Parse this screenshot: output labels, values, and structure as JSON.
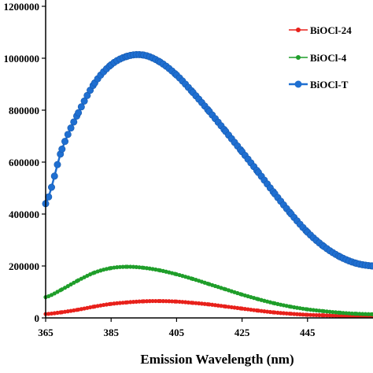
{
  "chart_data": {
    "type": "line",
    "title": "",
    "xlabel": "Emission Wavelength (nm)",
    "ylabel": "",
    "xlim": [
      365,
      465
    ],
    "ylim": [
      0,
      1200000
    ],
    "x_ticks": [
      365,
      385,
      405,
      425,
      445
    ],
    "x_tick_labels": [
      "365",
      "385",
      "405",
      "425",
      "445"
    ],
    "y_ticks": [
      0,
      200000,
      400000,
      600000,
      800000,
      1000000,
      1200000
    ],
    "y_tick_labels": [
      "0",
      "200000",
      "400000",
      "600000",
      "800000",
      "1000000",
      "1200000"
    ],
    "grid": false,
    "legend_position": "top-right",
    "series": [
      {
        "name": "BiOCl-24",
        "color": "#e8211b",
        "marker": "circle-small",
        "x": [
          365,
          370,
          375,
          380,
          385,
          390,
          395,
          400,
          405,
          410,
          415,
          420,
          425,
          430,
          435,
          440,
          445,
          450,
          455,
          460,
          465
        ],
        "y": [
          15000,
          22000,
          32000,
          44000,
          54000,
          60000,
          64000,
          65000,
          63000,
          58000,
          52000,
          44000,
          36000,
          28000,
          21000,
          16000,
          12000,
          10000,
          8000,
          7000,
          6000
        ]
      },
      {
        "name": "BiOCl-4",
        "color": "#1f9e2a",
        "marker": "circle-small",
        "x": [
          365,
          370,
          375,
          380,
          385,
          390,
          395,
          400,
          405,
          410,
          415,
          420,
          425,
          430,
          435,
          440,
          445,
          450,
          455,
          460,
          465
        ],
        "y": [
          80000,
          110000,
          145000,
          175000,
          192000,
          197000,
          193000,
          183000,
          168000,
          150000,
          130000,
          110000,
          90000,
          72000,
          56000,
          43000,
          33000,
          26000,
          20000,
          16000,
          14000
        ]
      },
      {
        "name": "BiOCl-T",
        "color": "#1f6fd1",
        "marker": "circle-large",
        "x": [
          365,
          370,
          375,
          380,
          385,
          390,
          395,
          400,
          405,
          410,
          415,
          420,
          425,
          430,
          435,
          440,
          445,
          450,
          455,
          460,
          465
        ],
        "y": [
          440000,
          650000,
          790000,
          905000,
          975000,
          1008000,
          1012000,
          985000,
          935000,
          868000,
          795000,
          718000,
          640000,
          560000,
          478000,
          400000,
          330000,
          275000,
          235000,
          210000,
          200000
        ]
      }
    ]
  }
}
